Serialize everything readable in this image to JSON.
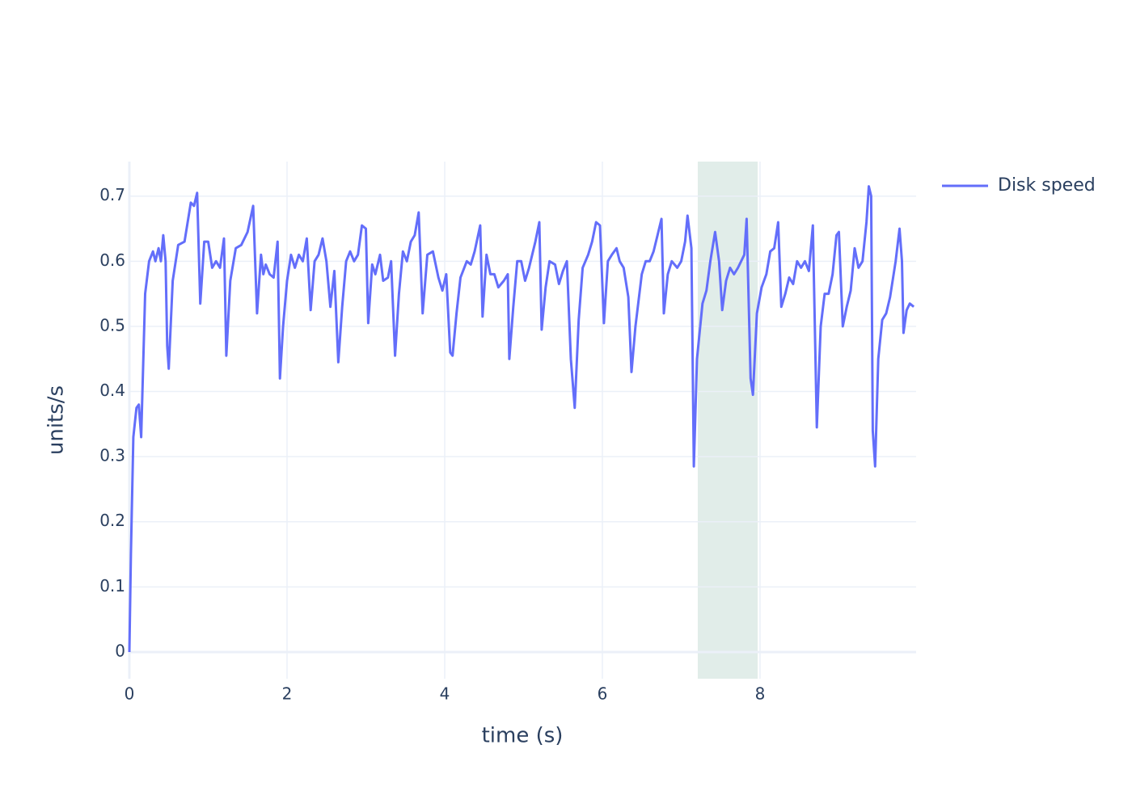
{
  "chart_data": {
    "type": "line",
    "x_label": "time (s)",
    "y_label": "units/s",
    "x": [
      0,
      0.02,
      0.05,
      0.09,
      0.12,
      0.15,
      0.2,
      0.25,
      0.3,
      0.33,
      0.37,
      0.4,
      0.43,
      0.46,
      0.48,
      0.5,
      0.55,
      0.62,
      0.7,
      0.78,
      0.82,
      0.86,
      0.9,
      0.95,
      1.0,
      1.05,
      1.1,
      1.15,
      1.2,
      1.23,
      1.28,
      1.35,
      1.42,
      1.5,
      1.57,
      1.62,
      1.67,
      1.7,
      1.73,
      1.78,
      1.83,
      1.88,
      1.91,
      1.95,
      2.0,
      2.05,
      2.1,
      2.15,
      2.2,
      2.25,
      2.3,
      2.35,
      2.4,
      2.45,
      2.5,
      2.55,
      2.6,
      2.65,
      2.7,
      2.75,
      2.8,
      2.85,
      2.9,
      2.95,
      3.0,
      3.03,
      3.08,
      3.12,
      3.18,
      3.22,
      3.28,
      3.32,
      3.37,
      3.42,
      3.47,
      3.52,
      3.57,
      3.62,
      3.67,
      3.72,
      3.78,
      3.85,
      3.92,
      3.97,
      4.02,
      4.07,
      4.1,
      4.15,
      4.2,
      4.28,
      4.33,
      4.38,
      4.45,
      4.48,
      4.53,
      4.58,
      4.63,
      4.68,
      4.75,
      4.8,
      4.82,
      4.87,
      4.92,
      4.97,
      5.02,
      5.07,
      5.15,
      5.2,
      5.23,
      5.28,
      5.33,
      5.4,
      5.45,
      5.5,
      5.55,
      5.6,
      5.65,
      5.7,
      5.75,
      5.82,
      5.87,
      5.92,
      5.97,
      6.02,
      6.07,
      6.12,
      6.18,
      6.22,
      6.27,
      6.33,
      6.37,
      6.42,
      6.5,
      6.55,
      6.6,
      6.65,
      6.7,
      6.75,
      6.78,
      6.83,
      6.88,
      6.95,
      7.0,
      7.05,
      7.08,
      7.13,
      7.16,
      7.2,
      7.27,
      7.32,
      7.37,
      7.43,
      7.48,
      7.52,
      7.57,
      7.62,
      7.67,
      7.72,
      7.8,
      7.83,
      7.88,
      7.91,
      7.96,
      8.02,
      8.08,
      8.13,
      8.18,
      8.23,
      8.27,
      8.32,
      8.37,
      8.42,
      8.47,
      8.52,
      8.57,
      8.62,
      8.67,
      8.72,
      8.77,
      8.82,
      8.87,
      8.92,
      8.97,
      9.0,
      9.05,
      9.1,
      9.15,
      9.2,
      9.25,
      9.3,
      9.35,
      9.38,
      9.41,
      9.43,
      9.46,
      9.5,
      9.55,
      9.6,
      9.65,
      9.72,
      9.77,
      9.8,
      9.82,
      9.86,
      9.9,
      9.95
    ],
    "series": [
      {
        "name": "Disk speed",
        "color": "#636efa",
        "values": [
          0,
          0.15,
          0.33,
          0.375,
          0.38,
          0.33,
          0.55,
          0.6,
          0.615,
          0.6,
          0.62,
          0.6,
          0.64,
          0.6,
          0.47,
          0.435,
          0.57,
          0.625,
          0.63,
          0.69,
          0.685,
          0.705,
          0.535,
          0.63,
          0.63,
          0.59,
          0.6,
          0.59,
          0.635,
          0.455,
          0.57,
          0.62,
          0.625,
          0.645,
          0.685,
          0.52,
          0.61,
          0.58,
          0.595,
          0.58,
          0.575,
          0.63,
          0.42,
          0.5,
          0.57,
          0.61,
          0.59,
          0.61,
          0.6,
          0.635,
          0.525,
          0.6,
          0.61,
          0.635,
          0.6,
          0.53,
          0.585,
          0.445,
          0.53,
          0.6,
          0.615,
          0.6,
          0.61,
          0.655,
          0.65,
          0.505,
          0.595,
          0.58,
          0.61,
          0.57,
          0.575,
          0.6,
          0.455,
          0.55,
          0.615,
          0.6,
          0.63,
          0.64,
          0.675,
          0.52,
          0.61,
          0.615,
          0.575,
          0.555,
          0.58,
          0.46,
          0.455,
          0.52,
          0.575,
          0.6,
          0.595,
          0.615,
          0.655,
          0.515,
          0.61,
          0.58,
          0.58,
          0.56,
          0.57,
          0.58,
          0.45,
          0.53,
          0.6,
          0.6,
          0.57,
          0.59,
          0.63,
          0.66,
          0.495,
          0.56,
          0.6,
          0.595,
          0.565,
          0.585,
          0.6,
          0.45,
          0.375,
          0.51,
          0.59,
          0.61,
          0.63,
          0.66,
          0.655,
          0.505,
          0.6,
          0.61,
          0.62,
          0.6,
          0.59,
          0.545,
          0.43,
          0.5,
          0.58,
          0.6,
          0.6,
          0.615,
          0.64,
          0.665,
          0.52,
          0.58,
          0.6,
          0.59,
          0.6,
          0.63,
          0.67,
          0.62,
          0.285,
          0.45,
          0.535,
          0.555,
          0.6,
          0.645,
          0.6,
          0.525,
          0.57,
          0.59,
          0.58,
          0.59,
          0.61,
          0.665,
          0.42,
          0.395,
          0.52,
          0.56,
          0.58,
          0.615,
          0.62,
          0.66,
          0.53,
          0.55,
          0.575,
          0.565,
          0.6,
          0.59,
          0.6,
          0.585,
          0.655,
          0.345,
          0.5,
          0.55,
          0.55,
          0.58,
          0.64,
          0.645,
          0.5,
          0.53,
          0.555,
          0.62,
          0.59,
          0.6,
          0.66,
          0.715,
          0.7,
          0.34,
          0.285,
          0.45,
          0.51,
          0.52,
          0.545,
          0.6,
          0.65,
          0.6,
          0.49,
          0.525,
          0.535,
          0.53
        ]
      }
    ],
    "highlight": {
      "x0": 7.21,
      "x1": 7.97,
      "color": "#e1ede9"
    },
    "xlim": [
      0,
      9.98
    ],
    "ylim": [
      -0.041,
      0.753
    ],
    "xticks": [
      0,
      2,
      4,
      6,
      8
    ],
    "yticks": [
      0,
      0.1,
      0.2,
      0.3,
      0.4,
      0.5,
      0.6,
      0.7
    ],
    "grid": true,
    "legend": "top-right"
  }
}
